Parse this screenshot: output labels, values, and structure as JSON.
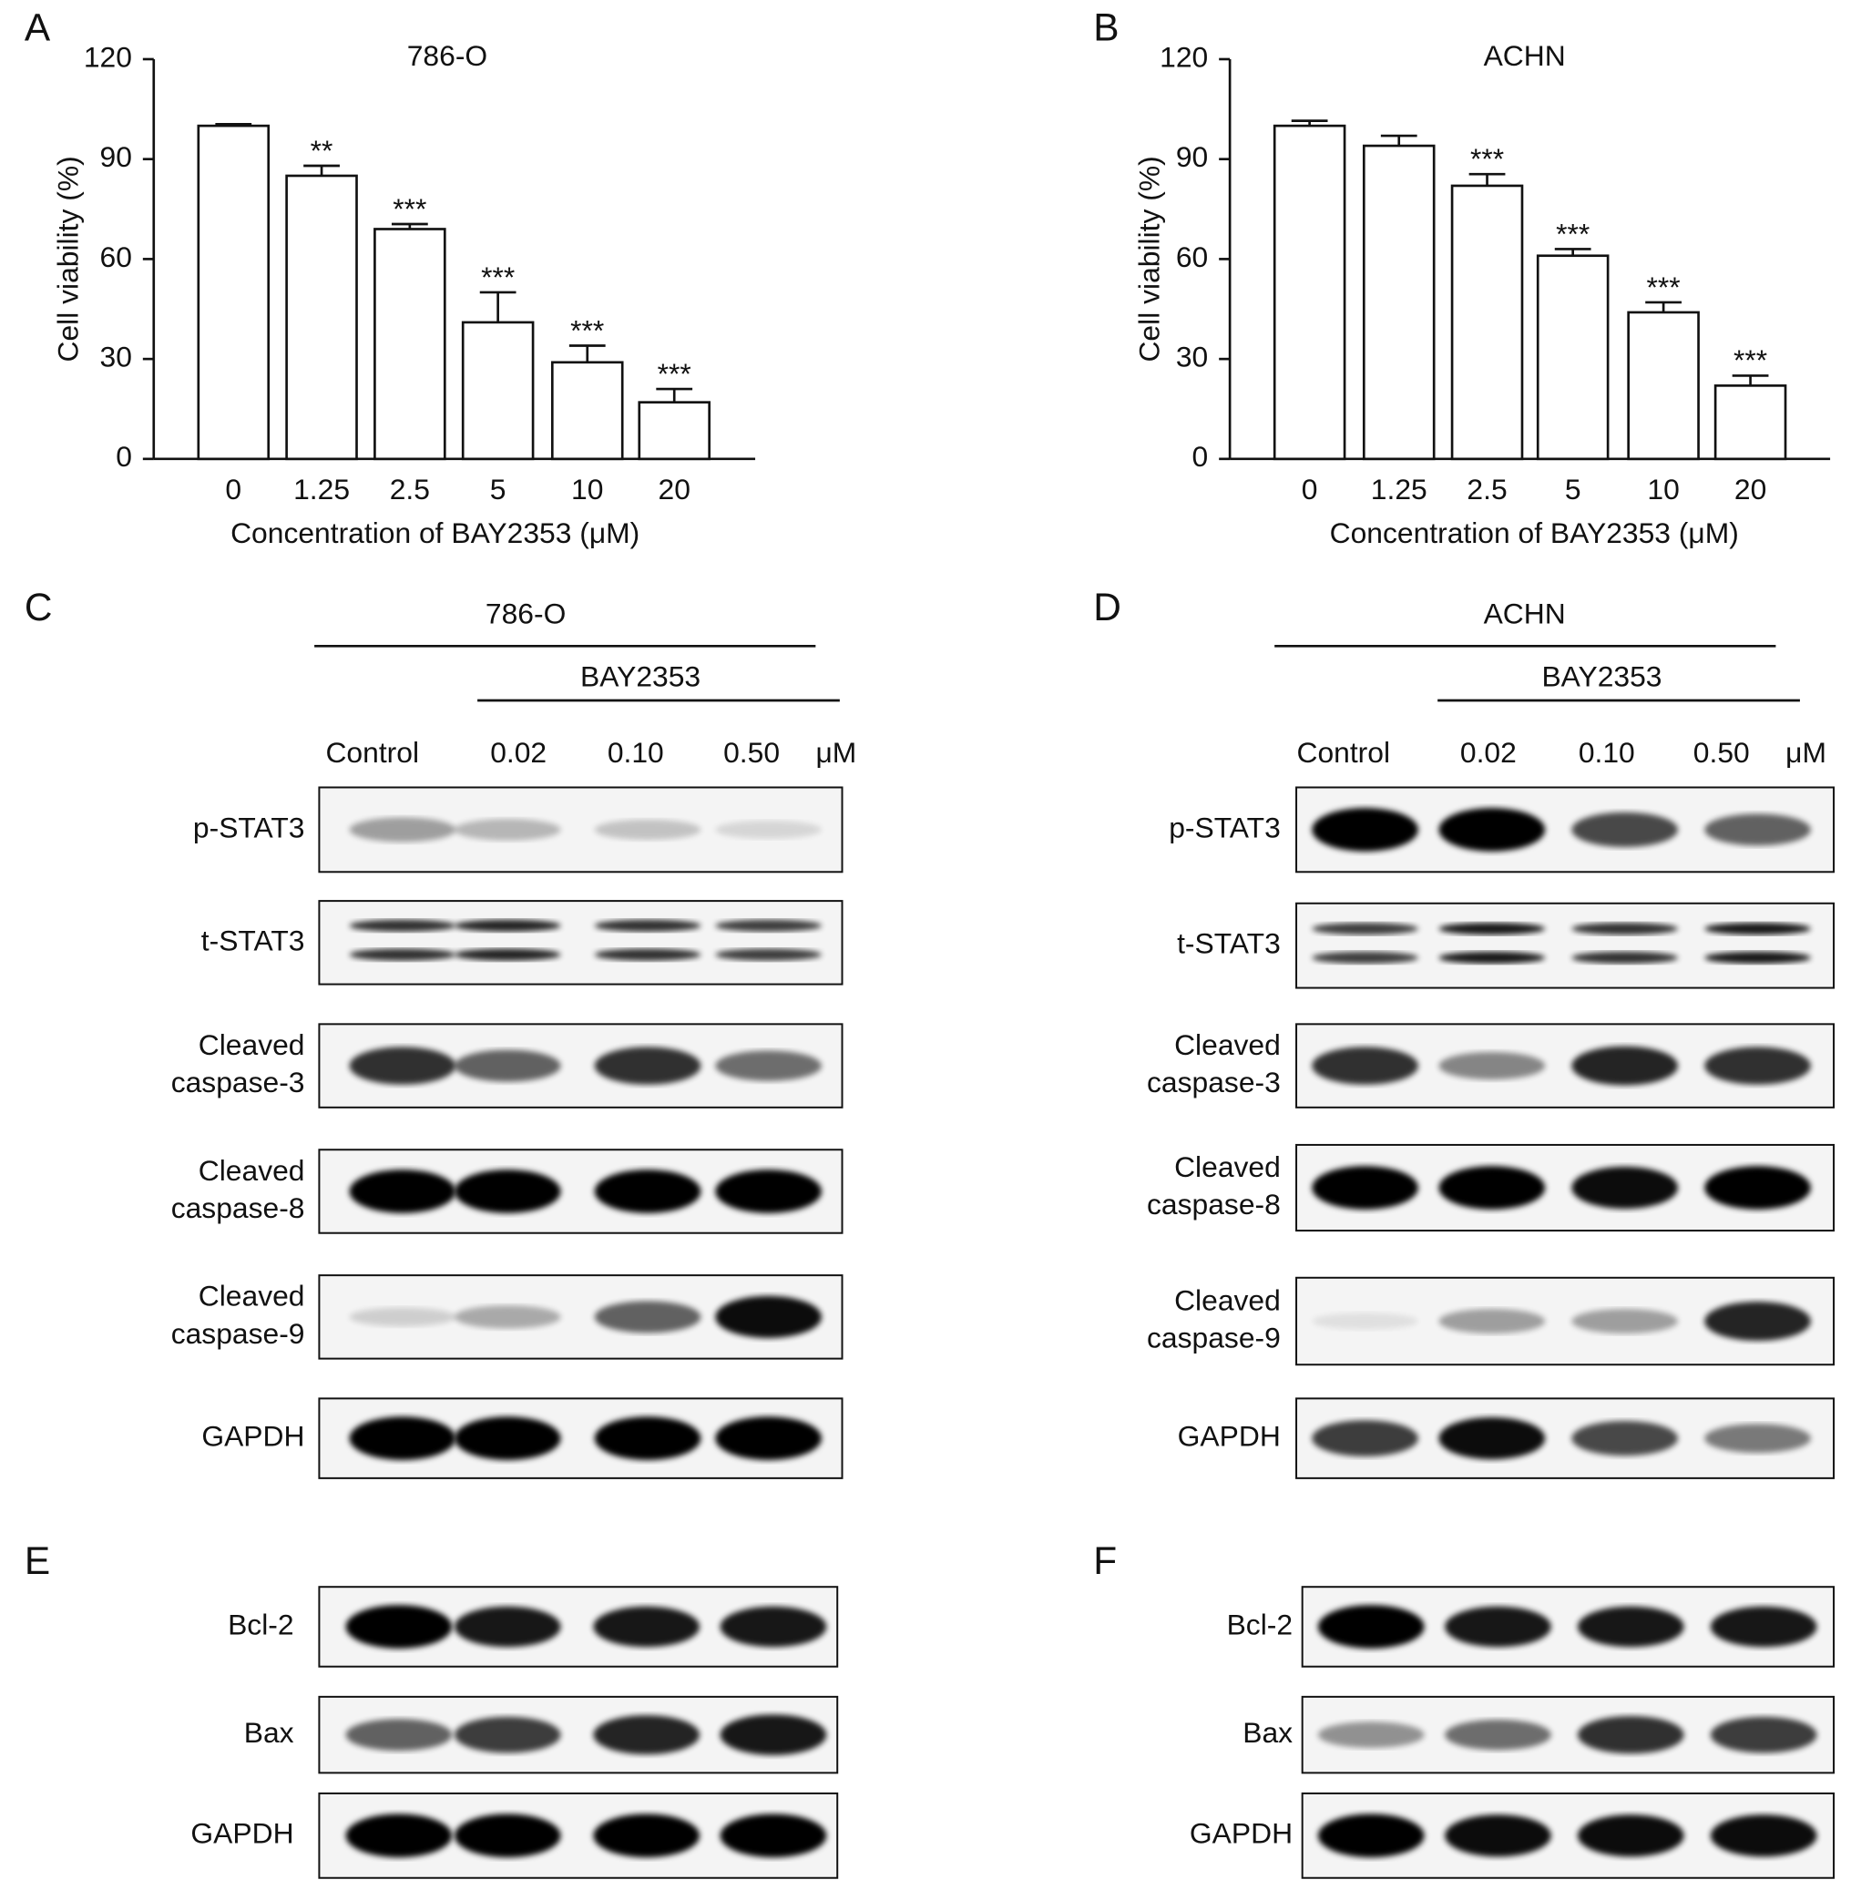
{
  "chart_data": [
    {
      "label": "A",
      "type": "bar",
      "title": "786-O",
      "categories": [
        "0",
        "1.25",
        "2.5",
        "5",
        "10",
        "20"
      ],
      "values": [
        100,
        85,
        69,
        41,
        29,
        17
      ],
      "errors": [
        0.5,
        3,
        1.5,
        9,
        5,
        4
      ],
      "annotations": [
        null,
        "**",
        "***",
        "***",
        "***",
        "***"
      ],
      "color": "#ffffff",
      "xlabel": "Concentration of BAY2353 (μM)",
      "ylabel": "Cell viability (%)",
      "ylim": [
        0,
        120
      ],
      "yticks": [
        0,
        30,
        60,
        90,
        120
      ]
    },
    {
      "label": "B",
      "type": "bar",
      "title": "ACHN",
      "categories": [
        "0",
        "1.25",
        "2.5",
        "5",
        "10",
        "20"
      ],
      "values": [
        100,
        94,
        82,
        61,
        44,
        22
      ],
      "errors": [
        1.5,
        3,
        3.5,
        2,
        3,
        3
      ],
      "annotations": [
        null,
        null,
        "***",
        "***",
        "***",
        "***"
      ],
      "color": "#ffffff",
      "xlabel": "Concentration of BAY2353 (μM)",
      "ylabel": "Cell viability (%)",
      "ylim": [
        0,
        120
      ],
      "yticks": [
        0,
        30,
        60,
        90,
        120
      ]
    }
  ],
  "blots": [
    {
      "label": "C",
      "cell_line": "786-O",
      "treatment": "BAY2353",
      "lanes": [
        "Control",
        "0.02",
        "0.10",
        "0.50"
      ],
      "unit": "μM",
      "rows": [
        [
          "p-STAT3"
        ],
        [
          "t-STAT3"
        ],
        [
          "Cleaved",
          "caspase-3"
        ],
        [
          "Cleaved",
          "caspase-8"
        ],
        [
          "Cleaved",
          "caspase-9"
        ],
        [
          "GAPDH"
        ]
      ]
    },
    {
      "label": "D",
      "cell_line": "ACHN",
      "treatment": "BAY2353",
      "lanes": [
        "Control",
        "0.02",
        "0.10",
        "0.50"
      ],
      "unit": "μM",
      "rows": [
        [
          "p-STAT3"
        ],
        [
          "t-STAT3"
        ],
        [
          "Cleaved",
          "caspase-3"
        ],
        [
          "Cleaved",
          "caspase-8"
        ],
        [
          "Cleaved",
          "caspase-9"
        ],
        [
          "GAPDH"
        ]
      ]
    },
    {
      "label": "E",
      "rows": [
        [
          "Bcl-2"
        ],
        [
          "Bax"
        ],
        [
          "GAPDH"
        ]
      ]
    },
    {
      "label": "F",
      "rows": [
        [
          "Bcl-2"
        ],
        [
          "Bax"
        ],
        [
          "GAPDH"
        ]
      ]
    }
  ]
}
